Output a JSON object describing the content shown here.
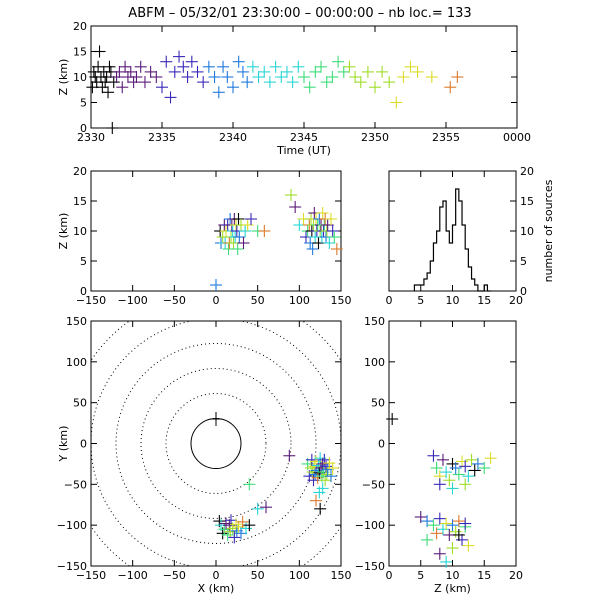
{
  "title": "ABFM – 05/32/01 23:30:00 – 00:00:00 – nb loc.=     133",
  "chart_data": [
    {
      "id": "time-height",
      "type": "scatter",
      "xlabel": "Time (UT)",
      "ylabel": "Z (km)",
      "xlim": [
        2330,
        2360
      ],
      "ylim": [
        0,
        20
      ],
      "xtick_labels": [
        "2330",
        "2335",
        "2340",
        "2345",
        "2350",
        "2355",
        "0000"
      ],
      "ytick_labels": [
        "0",
        "5",
        "10",
        "15",
        "20"
      ],
      "points": [
        [
          2330.1,
          8
        ],
        [
          2330.2,
          11
        ],
        [
          2330.3,
          10
        ],
        [
          2330.4,
          9
        ],
        [
          2330.5,
          12
        ],
        [
          2330.6,
          15
        ],
        [
          2330.7,
          10
        ],
        [
          2330.8,
          8
        ],
        [
          2330.9,
          11
        ],
        [
          2331.0,
          9
        ],
        [
          2331.1,
          10
        ],
        [
          2331.2,
          7
        ],
        [
          2331.3,
          12
        ],
        [
          2331.4,
          11
        ],
        [
          2331.5,
          0
        ],
        [
          2331.6,
          9
        ],
        [
          2331.8,
          10
        ],
        [
          2332.0,
          11
        ],
        [
          2332.2,
          8
        ],
        [
          2332.4,
          12
        ],
        [
          2332.6,
          10
        ],
        [
          2332.8,
          11
        ],
        [
          2333.0,
          9
        ],
        [
          2333.2,
          10
        ],
        [
          2333.5,
          12
        ],
        [
          2333.8,
          9
        ],
        [
          2334.2,
          11
        ],
        [
          2334.6,
          10
        ],
        [
          2335.0,
          8
        ],
        [
          2335.3,
          13
        ],
        [
          2335.6,
          6
        ],
        [
          2335.9,
          11
        ],
        [
          2336.2,
          14
        ],
        [
          2336.5,
          12
        ],
        [
          2336.8,
          10
        ],
        [
          2337.1,
          13
        ],
        [
          2337.5,
          11
        ],
        [
          2337.9,
          9
        ],
        [
          2338.3,
          12
        ],
        [
          2338.7,
          10
        ],
        [
          2339.0,
          7
        ],
        [
          2339.3,
          12
        ],
        [
          2339.6,
          10
        ],
        [
          2340.0,
          8
        ],
        [
          2340.4,
          13
        ],
        [
          2340.7,
          11
        ],
        [
          2341.0,
          9
        ],
        [
          2341.4,
          12
        ],
        [
          2341.8,
          10
        ],
        [
          2342.2,
          11
        ],
        [
          2342.6,
          9
        ],
        [
          2343.0,
          12
        ],
        [
          2343.4,
          10
        ],
        [
          2343.8,
          11
        ],
        [
          2344.2,
          9
        ],
        [
          2344.6,
          12
        ],
        [
          2345.0,
          10
        ],
        [
          2345.4,
          8
        ],
        [
          2345.8,
          11
        ],
        [
          2346.2,
          12
        ],
        [
          2346.6,
          9
        ],
        [
          2347.0,
          10
        ],
        [
          2347.4,
          13
        ],
        [
          2347.8,
          11
        ],
        [
          2348.2,
          12
        ],
        [
          2348.6,
          10
        ],
        [
          2349.0,
          9
        ],
        [
          2349.5,
          11
        ],
        [
          2350.0,
          8
        ],
        [
          2350.5,
          11
        ],
        [
          2351.0,
          9
        ],
        [
          2351.5,
          5
        ],
        [
          2352.0,
          10
        ],
        [
          2352.5,
          12
        ],
        [
          2353.0,
          11
        ],
        [
          2354.0,
          10
        ],
        [
          2355.3,
          8
        ],
        [
          2355.8,
          10
        ]
      ]
    },
    {
      "id": "x-height",
      "type": "scatter",
      "xlabel": "",
      "ylabel": "Z (km)",
      "xlim": [
        -150,
        150
      ],
      "ylim": [
        0,
        20
      ],
      "xtick_labels": [
        "−150",
        "−100",
        "−50",
        "0",
        "50",
        "100",
        "150"
      ],
      "ytick_labels": [
        "0",
        "5",
        "10",
        "15",
        "20"
      ],
      "points": [
        [
          5,
          10
        ],
        [
          6,
          8
        ],
        [
          8,
          9
        ],
        [
          10,
          11
        ],
        [
          11,
          8
        ],
        [
          12,
          10
        ],
        [
          14,
          11
        ],
        [
          15,
          7
        ],
        [
          16,
          8
        ],
        [
          17,
          12
        ],
        [
          18,
          9
        ],
        [
          19,
          11
        ],
        [
          20,
          10
        ],
        [
          21,
          8
        ],
        [
          22,
          12
        ],
        [
          23,
          9
        ],
        [
          24,
          11
        ],
        [
          25,
          10
        ],
        [
          26,
          7
        ],
        [
          27,
          12
        ],
        [
          28,
          9
        ],
        [
          30,
          11
        ],
        [
          33,
          8
        ],
        [
          35,
          10
        ],
        [
          38,
          11
        ],
        [
          42,
          12
        ],
        [
          50,
          10
        ],
        [
          58,
          10
        ],
        [
          0,
          1
        ],
        [
          90,
          16
        ],
        [
          95,
          14
        ],
        [
          100,
          11
        ],
        [
          105,
          12
        ],
        [
          108,
          9
        ],
        [
          110,
          10
        ],
        [
          112,
          11
        ],
        [
          113,
          8
        ],
        [
          114,
          12
        ],
        [
          115,
          10
        ],
        [
          116,
          7
        ],
        [
          117,
          11
        ],
        [
          118,
          13
        ],
        [
          119,
          9
        ],
        [
          120,
          12
        ],
        [
          121,
          10
        ],
        [
          122,
          11
        ],
        [
          123,
          8
        ],
        [
          124,
          12
        ],
        [
          125,
          10
        ],
        [
          126,
          11
        ],
        [
          127,
          9
        ],
        [
          128,
          13
        ],
        [
          129,
          10
        ],
        [
          130,
          11
        ],
        [
          131,
          12
        ],
        [
          132,
          9
        ],
        [
          133,
          10
        ],
        [
          134,
          11
        ],
        [
          136,
          8
        ],
        [
          138,
          12
        ],
        [
          140,
          10
        ],
        [
          142,
          9
        ],
        [
          145,
          7
        ]
      ]
    },
    {
      "id": "height-histogram",
      "type": "bar",
      "ylabel": "number of sources",
      "xlim": [
        0,
        20
      ],
      "ylim": [
        0,
        20
      ],
      "xtick_labels": [
        "0",
        "5",
        "10",
        "15",
        "20"
      ],
      "ytick_labels": [
        "0",
        "5",
        "10",
        "15",
        "20"
      ],
      "bin_width": 0.5,
      "bins_from": 4,
      "values": [
        1,
        1,
        1,
        2,
        3,
        5,
        8,
        10,
        14,
        15,
        10,
        8,
        11,
        17,
        15,
        11,
        7,
        4,
        2,
        1,
        0,
        0,
        1,
        0
      ]
    },
    {
      "id": "plan-view",
      "type": "scatter",
      "xlabel": "X (km)",
      "ylabel": "Y (km)",
      "xlim": [
        -150,
        150
      ],
      "ylim": [
        -150,
        150
      ],
      "xtick_labels": [
        "−150",
        "−100",
        "−50",
        "0",
        "50",
        "100",
        "150"
      ],
      "ytick_labels": [
        "−150",
        "−100",
        "−50",
        "0",
        "50",
        "100",
        "150"
      ],
      "range_rings_km": [
        30,
        60,
        90,
        120,
        150,
        180
      ],
      "station": [
        0,
        30
      ],
      "points": [
        [
          4,
          -95
        ],
        [
          6,
          -100
        ],
        [
          8,
          -110
        ],
        [
          10,
          -105
        ],
        [
          12,
          -98
        ],
        [
          14,
          -112
        ],
        [
          16,
          -100
        ],
        [
          17,
          -108
        ],
        [
          18,
          -94
        ],
        [
          20,
          -104
        ],
        [
          22,
          -115
        ],
        [
          24,
          -99
        ],
        [
          25,
          -107
        ],
        [
          27,
          -102
        ],
        [
          30,
          -110
        ],
        [
          32,
          -96
        ],
        [
          36,
          -104
        ],
        [
          40,
          -100
        ],
        [
          50,
          -80
        ],
        [
          60,
          -78
        ],
        [
          40,
          -50
        ],
        [
          88,
          -15
        ],
        [
          110,
          -25
        ],
        [
          112,
          -40
        ],
        [
          114,
          -30
        ],
        [
          115,
          -20
        ],
        [
          116,
          -35
        ],
        [
          117,
          -45
        ],
        [
          118,
          -28
        ],
        [
          119,
          -38
        ],
        [
          120,
          -22
        ],
        [
          121,
          -33
        ],
        [
          122,
          -42
        ],
        [
          123,
          -27
        ],
        [
          124,
          -36
        ],
        [
          125,
          -18
        ],
        [
          126,
          -30
        ],
        [
          127,
          -40
        ],
        [
          128,
          -25
        ],
        [
          129,
          -35
        ],
        [
          130,
          -20
        ],
        [
          131,
          -45
        ],
        [
          132,
          -28
        ],
        [
          133,
          -38
        ],
        [
          134,
          -32
        ],
        [
          136,
          -24
        ],
        [
          138,
          -40
        ],
        [
          140,
          -30
        ],
        [
          124,
          -60
        ],
        [
          120,
          -70
        ],
        [
          128,
          -55
        ],
        [
          125,
          -80
        ]
      ]
    },
    {
      "id": "height-y",
      "type": "scatter",
      "xlabel": "Z (km)",
      "ylabel": "",
      "xlim": [
        0,
        20
      ],
      "ylim": [
        -150,
        150
      ],
      "xtick_labels": [
        "0",
        "5",
        "10",
        "15",
        "20"
      ],
      "ytick_labels": [
        "−150",
        "−100",
        "−50",
        "0",
        "50",
        "100",
        "150"
      ],
      "points": [
        [
          0.5,
          30
        ],
        [
          7,
          -15
        ],
        [
          7.5,
          -30
        ],
        [
          8,
          -40
        ],
        [
          8.5,
          -20
        ],
        [
          9,
          -35
        ],
        [
          9.5,
          -45
        ],
        [
          10,
          -25
        ],
        [
          10.5,
          -30
        ],
        [
          11,
          -38
        ],
        [
          11.5,
          -22
        ],
        [
          12,
          -28
        ],
        [
          12.5,
          -40
        ],
        [
          13,
          -20
        ],
        [
          13.5,
          -33
        ],
        [
          14,
          -25
        ],
        [
          15,
          -30
        ],
        [
          16,
          -18
        ],
        [
          8,
          -50
        ],
        [
          10,
          -55
        ],
        [
          12,
          -50
        ],
        [
          5,
          -90
        ],
        [
          6,
          -95
        ],
        [
          7,
          -100
        ],
        [
          7.5,
          -110
        ],
        [
          8,
          -92
        ],
        [
          8.5,
          -105
        ],
        [
          9,
          -98
        ],
        [
          9.5,
          -112
        ],
        [
          10,
          -100
        ],
        [
          10.5,
          -108
        ],
        [
          11,
          -95
        ],
        [
          11.5,
          -118
        ],
        [
          12,
          -102
        ],
        [
          12.5,
          -125
        ],
        [
          8,
          -135
        ],
        [
          9,
          -145
        ],
        [
          10,
          -128
        ],
        [
          11,
          -112
        ],
        [
          12,
          -98
        ],
        [
          6,
          -118
        ]
      ]
    }
  ],
  "colors": {
    "marker_ramp": [
      "#000000",
      "#5a1a78",
      "#3828b8",
      "#1f78dc",
      "#28d4d4",
      "#3cdc78",
      "#a0dc28",
      "#dcdc28",
      "#dc7828"
    ],
    "axis": "#000000",
    "background": "#ffffff"
  }
}
